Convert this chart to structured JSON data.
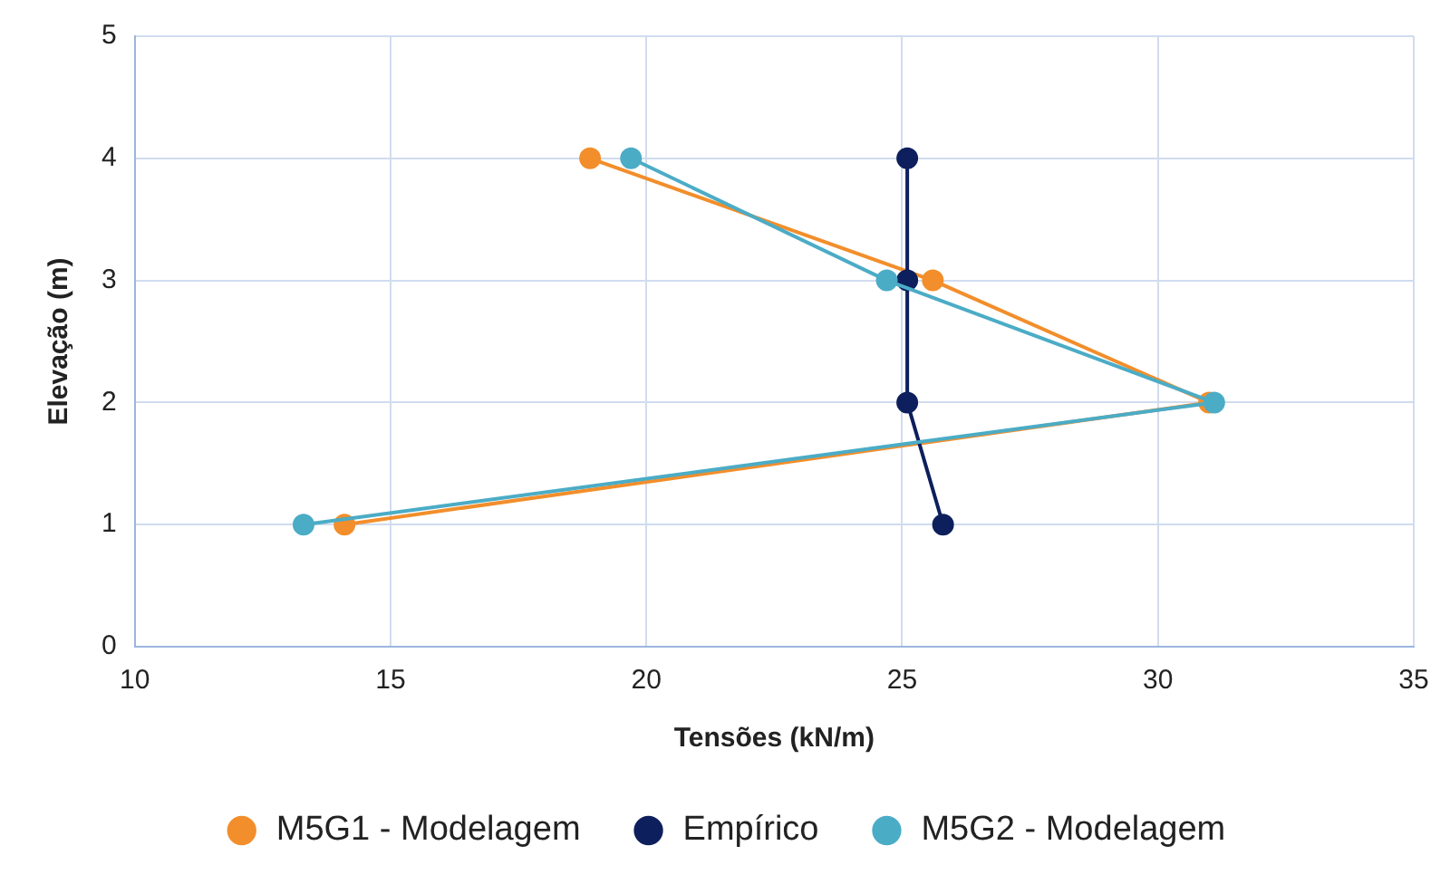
{
  "chart_data": {
    "type": "line",
    "xlabel": "Tensões (kN/m)",
    "ylabel": "Elevação (m)",
    "xlim": [
      10,
      35
    ],
    "xticks": [
      10,
      15,
      20,
      25,
      30,
      35
    ],
    "ylim": [
      0,
      5
    ],
    "yticks": [
      0,
      1,
      2,
      3,
      4,
      5
    ],
    "grid": true,
    "legend": "bottom",
    "marker": "circle",
    "series": [
      {
        "name": "M5G1 - Modelagem",
        "color": "#f28e2b",
        "x": [
          18.9,
          25.6,
          31.0,
          14.1
        ],
        "values": [
          4,
          3,
          2,
          1
        ]
      },
      {
        "name": "Empírico",
        "color": "#0d1f5c",
        "x": [
          25.1,
          25.1,
          25.1,
          25.8
        ],
        "values": [
          4,
          3,
          2,
          1
        ]
      },
      {
        "name": "M5G2 - Modelagem",
        "color": "#4bacc6",
        "x": [
          19.7,
          24.7,
          31.1,
          13.3
        ],
        "values": [
          4,
          3,
          2,
          1
        ]
      }
    ]
  }
}
